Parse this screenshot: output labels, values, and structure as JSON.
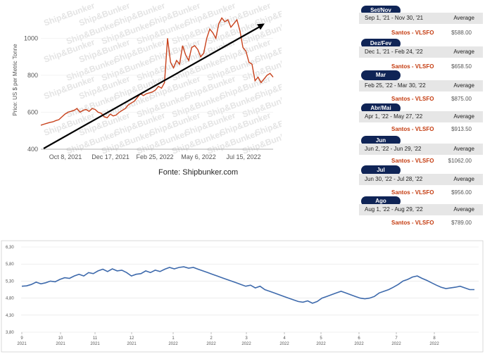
{
  "chart_data": [
    {
      "type": "line",
      "title": "",
      "ylabel": "Price: US $ per Metric Tonne",
      "ylim": [
        400,
        1150
      ],
      "yticks": [
        400,
        600,
        800,
        1000
      ],
      "xtick_labels": [
        "Oct 8, 2021",
        "Dec 17, 2021",
        "Feb 25, 2022",
        "May 6, 2022",
        "Jul 15, 2022"
      ],
      "watermark": "Ship&Bunker",
      "line_color": "#c8411b",
      "trend_arrow": {
        "from": [
          0,
          400
        ],
        "to": [
          1,
          1080
        ],
        "color": "#000000"
      },
      "series": [
        {
          "values": [
            530,
            535,
            540,
            545,
            548,
            555,
            560,
            575,
            590,
            600,
            605,
            610,
            620,
            600,
            610,
            615,
            605,
            620,
            615,
            600,
            595,
            575,
            570,
            590,
            580,
            585,
            600,
            610,
            620,
            640,
            650,
            660,
            680,
            700,
            690,
            700,
            705,
            710,
            720,
            740,
            730,
            760,
            1000,
            870,
            840,
            880,
            860,
            960,
            910,
            880,
            950,
            960,
            940,
            900,
            920,
            1000,
            1050,
            1030,
            1000,
            1080,
            1110,
            1090,
            1100,
            1060,
            1080,
            1100,
            1040,
            950,
            930,
            870,
            860,
            770,
            790,
            760,
            780,
            800,
            810,
            790
          ]
        }
      ]
    },
    {
      "type": "line",
      "title": "",
      "ylim": [
        3.8,
        6.3
      ],
      "yticks": [
        "3,80",
        "4,30",
        "4,80",
        "5,30",
        "5,80",
        "6,30"
      ],
      "yvalues": [
        3.8,
        4.3,
        4.8,
        5.3,
        5.8,
        6.3
      ],
      "xtick_months": [
        "9",
        "10",
        "11",
        "12",
        "1",
        "2",
        "3",
        "4",
        "5",
        "6",
        "7",
        "8"
      ],
      "xtick_years": [
        "2021",
        "2021",
        "2021",
        "2021",
        "2022",
        "2022",
        "2022",
        "2022",
        "2022",
        "2022",
        "2022",
        "2022"
      ],
      "line_color": "#3e6aac",
      "grid": true,
      "series": [
        {
          "values": [
            5.15,
            5.16,
            5.2,
            5.27,
            5.22,
            5.25,
            5.3,
            5.28,
            5.35,
            5.4,
            5.38,
            5.45,
            5.5,
            5.45,
            5.55,
            5.52,
            5.6,
            5.65,
            5.58,
            5.66,
            5.6,
            5.62,
            5.55,
            5.45,
            5.5,
            5.52,
            5.6,
            5.55,
            5.62,
            5.58,
            5.65,
            5.7,
            5.66,
            5.7,
            5.72,
            5.68,
            5.7,
            5.65,
            5.6,
            5.55,
            5.5,
            5.45,
            5.4,
            5.35,
            5.3,
            5.25,
            5.2,
            5.15,
            5.18,
            5.1,
            5.15,
            5.05,
            5.0,
            4.95,
            4.9,
            4.85,
            4.8,
            4.75,
            4.7,
            4.68,
            4.72,
            4.65,
            4.7,
            4.8,
            4.85,
            4.9,
            4.95,
            5.0,
            4.95,
            4.9,
            4.85,
            4.8,
            4.78,
            4.8,
            4.85,
            4.95,
            5.0,
            5.05,
            5.12,
            5.2,
            5.3,
            5.35,
            5.42,
            5.45,
            5.38,
            5.32,
            5.25,
            5.18,
            5.12,
            5.08,
            5.1,
            5.12,
            5.15,
            5.1,
            5.05,
            5.05
          ]
        }
      ]
    }
  ],
  "source_caption": "Fonte: Shipbunker.com",
  "price_table": [
    {
      "period": "Set/Nov",
      "range": "Sep 1, '21 - Nov 30, '21",
      "avg_label": "Average",
      "item": "Santos - VLSFO",
      "price": "$588.00"
    },
    {
      "period": "Dez/Fev",
      "range": "Dec 1, '21 - Feb 24, '22",
      "avg_label": "Average",
      "item": "Santos - VLSFO",
      "price": "$658.50"
    },
    {
      "period": "Mar",
      "range": "Feb 25, '22 - Mar 30, '22",
      "avg_label": "Average",
      "item": "Santos - VLSFO",
      "price": "$875.00"
    },
    {
      "period": "Abr/Mai",
      "range": "Apr 1, '22 - May 27, '22",
      "avg_label": "Average",
      "item": "Santos - VLSFO",
      "price": "$913.50"
    },
    {
      "period": "Jun",
      "range": "Jun 2, '22 - Jun 29, '22",
      "avg_label": "Average",
      "item": "Santos - VLSFO",
      "price": "$1062.00"
    },
    {
      "period": "Jul",
      "range": "Jun 30, '22 - Jul 28, '22",
      "avg_label": "Average",
      "item": "Santos - VLSFO",
      "price": "$956.00"
    },
    {
      "period": "Ago",
      "range": "Aug 1, '22 - Aug 29, '22",
      "avg_label": "Average",
      "item": "Santos - VLSFO",
      "price": "$789.00"
    }
  ]
}
